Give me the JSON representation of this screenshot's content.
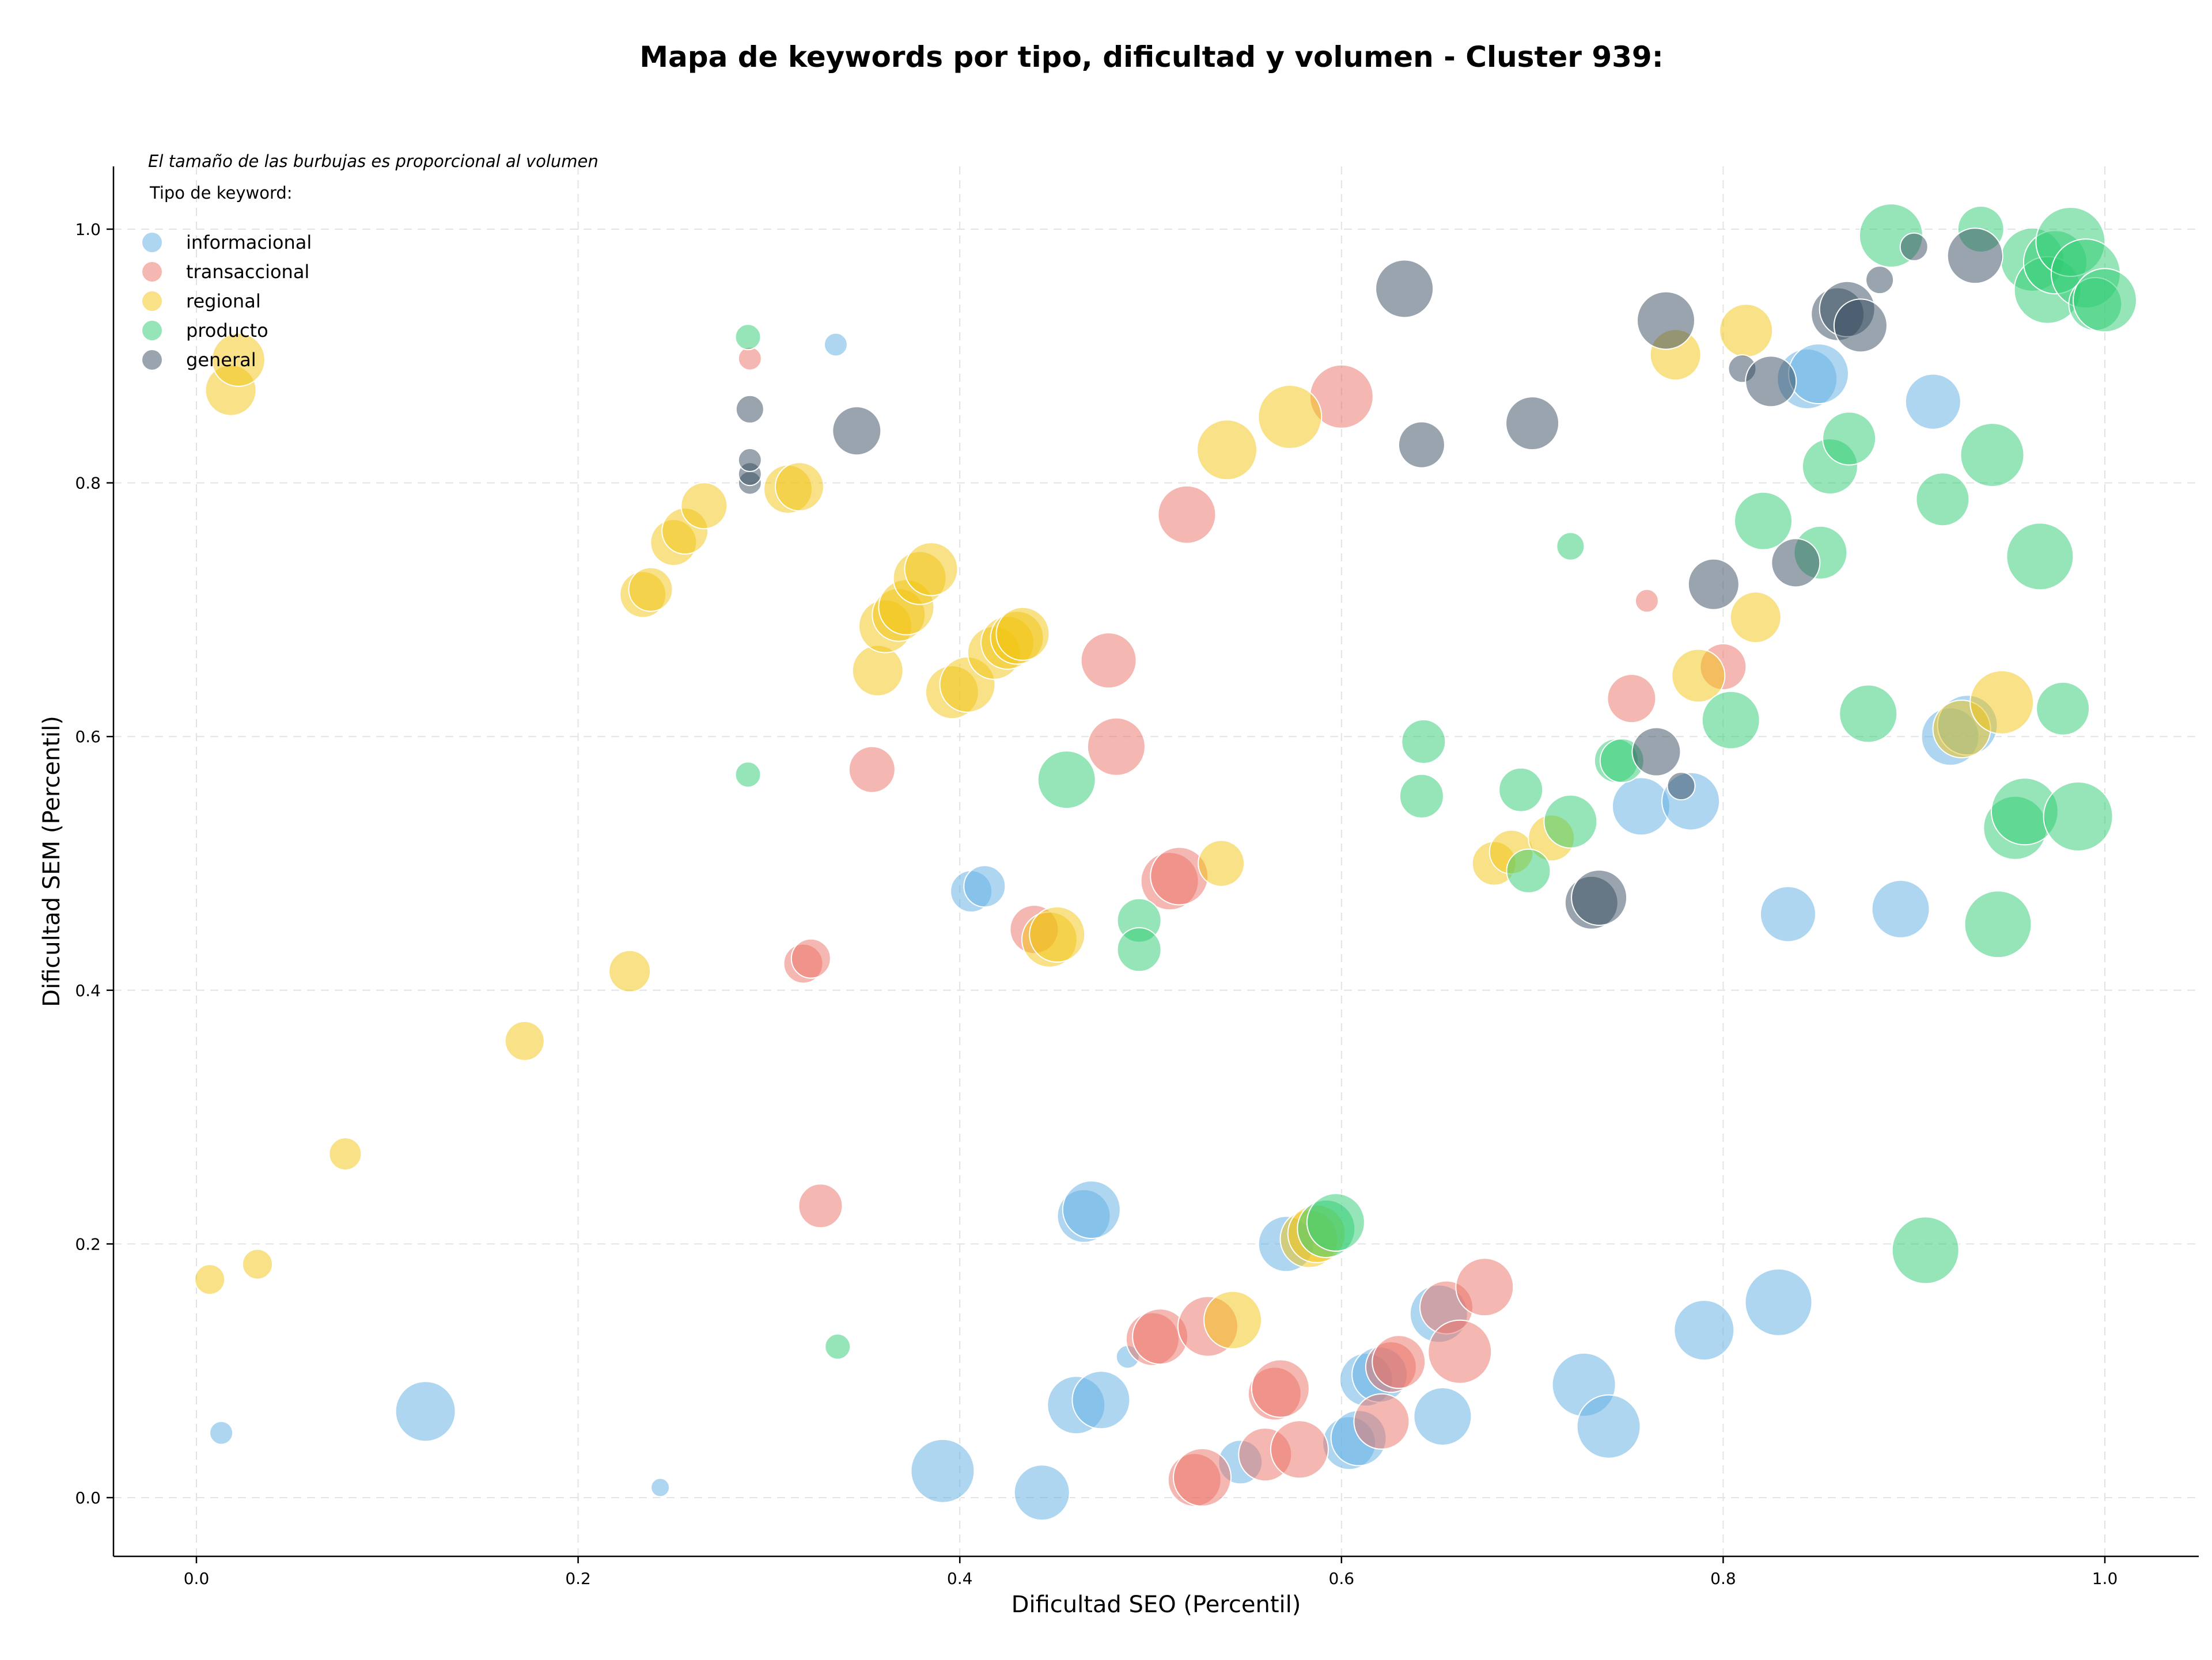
{
  "chart_data": {
    "type": "scatter",
    "title": "Mapa de keywords por tipo, dificultad y volumen - Cluster 939:",
    "xlabel": "Dificultad SEO (Percentil)",
    "ylabel": "Dificultad SEM (Percentil)",
    "xlim": [
      -0.045,
      1.05
    ],
    "ylim": [
      -0.045,
      1.05
    ],
    "x_ticks": [
      "0.0",
      "0.2",
      "0.4",
      "0.6",
      "0.8",
      "1.0"
    ],
    "y_ticks": [
      "0.0",
      "0.2",
      "0.4",
      "0.6",
      "0.8",
      "1.0"
    ],
    "grid": true,
    "legend_position": "top-left",
    "legend_title": "Tipo de keyword:",
    "note": "El tamaño de las burbujas es proporcional al volumen",
    "series": [
      {
        "name": "informacional",
        "color": "#5dade2",
        "points": [
          [
            0.013,
            0.051,
            20
          ],
          [
            0.12,
            0.068,
            52
          ],
          [
            0.243,
            0.008,
            16
          ],
          [
            0.335,
            0.909,
            20
          ],
          [
            0.391,
            0.021,
            55
          ],
          [
            0.406,
            0.478,
            36
          ],
          [
            0.413,
            0.482,
            36
          ],
          [
            0.443,
            0.004,
            48
          ],
          [
            0.461,
            0.073,
            50
          ],
          [
            0.465,
            0.222,
            46
          ],
          [
            0.469,
            0.227,
            50
          ],
          [
            0.474,
            0.077,
            50
          ],
          [
            0.488,
            0.111,
            20
          ],
          [
            0.547,
            0.028,
            38
          ],
          [
            0.571,
            0.2,
            48
          ],
          [
            0.604,
            0.043,
            46
          ],
          [
            0.609,
            0.047,
            48
          ],
          [
            0.613,
            0.093,
            46
          ],
          [
            0.62,
            0.097,
            48
          ],
          [
            0.651,
            0.145,
            50
          ],
          [
            0.653,
            0.064,
            50
          ],
          [
            0.727,
            0.089,
            55
          ],
          [
            0.74,
            0.056,
            55
          ],
          [
            0.757,
            0.545,
            50
          ],
          [
            0.783,
            0.549,
            50
          ],
          [
            0.79,
            0.132,
            52
          ],
          [
            0.829,
            0.154,
            58
          ],
          [
            0.834,
            0.46,
            48
          ],
          [
            0.844,
            0.882,
            52
          ],
          [
            0.85,
            0.886,
            52
          ],
          [
            0.893,
            0.464,
            50
          ],
          [
            0.91,
            0.864,
            48
          ],
          [
            0.919,
            0.6,
            50
          ],
          [
            0.928,
            0.609,
            52
          ]
        ]
      },
      {
        "name": "transaccional",
        "color": "#ec7063",
        "points": [
          [
            0.29,
            0.898,
            20
          ],
          [
            0.318,
            0.421,
            34
          ],
          [
            0.322,
            0.425,
            34
          ],
          [
            0.327,
            0.23,
            38
          ],
          [
            0.354,
            0.574,
            40
          ],
          [
            0.439,
            0.448,
            42
          ],
          [
            0.478,
            0.66,
            48
          ],
          [
            0.482,
            0.592,
            50
          ],
          [
            0.501,
            0.125,
            46
          ],
          [
            0.505,
            0.127,
            48
          ],
          [
            0.51,
            0.486,
            50
          ],
          [
            0.515,
            0.49,
            50
          ],
          [
            0.519,
            0.775,
            50
          ],
          [
            0.523,
            0.014,
            46
          ],
          [
            0.527,
            0.016,
            50
          ],
          [
            0.53,
            0.135,
            52
          ],
          [
            0.56,
            0.034,
            46
          ],
          [
            0.565,
            0.082,
            46
          ],
          [
            0.568,
            0.086,
            50
          ],
          [
            0.578,
            0.038,
            50
          ],
          [
            0.6,
            0.868,
            55
          ],
          [
            0.621,
            0.06,
            48
          ],
          [
            0.626,
            0.103,
            44
          ],
          [
            0.63,
            0.107,
            46
          ],
          [
            0.655,
            0.15,
            46
          ],
          [
            0.662,
            0.115,
            55
          ],
          [
            0.675,
            0.166,
            50
          ],
          [
            0.752,
            0.63,
            42
          ],
          [
            0.76,
            0.707,
            20
          ],
          [
            0.8,
            0.655,
            40
          ]
        ]
      },
      {
        "name": "regional",
        "color": "#f1c40f",
        "points": [
          [
            0.007,
            0.172,
            26
          ],
          [
            0.018,
            0.873,
            44
          ],
          [
            0.022,
            0.897,
            46
          ],
          [
            0.032,
            0.184,
            26
          ],
          [
            0.078,
            0.271,
            28
          ],
          [
            0.172,
            0.36,
            34
          ],
          [
            0.227,
            0.415,
            36
          ],
          [
            0.234,
            0.712,
            40
          ],
          [
            0.238,
            0.716,
            38
          ],
          [
            0.25,
            0.753,
            40
          ],
          [
            0.256,
            0.762,
            40
          ],
          [
            0.266,
            0.782,
            40
          ],
          [
            0.31,
            0.795,
            42
          ],
          [
            0.316,
            0.797,
            42
          ],
          [
            0.357,
            0.652,
            44
          ],
          [
            0.361,
            0.687,
            46
          ],
          [
            0.368,
            0.696,
            46
          ],
          [
            0.372,
            0.702,
            48
          ],
          [
            0.379,
            0.725,
            46
          ],
          [
            0.385,
            0.732,
            46
          ],
          [
            0.396,
            0.635,
            46
          ],
          [
            0.404,
            0.641,
            48
          ],
          [
            0.418,
            0.666,
            46
          ],
          [
            0.425,
            0.674,
            46
          ],
          [
            0.43,
            0.678,
            46
          ],
          [
            0.433,
            0.681,
            46
          ],
          [
            0.447,
            0.44,
            48
          ],
          [
            0.451,
            0.444,
            48
          ],
          [
            0.537,
            0.5,
            40
          ],
          [
            0.543,
            0.14,
            50
          ],
          [
            0.54,
            0.826,
            52
          ],
          [
            0.573,
            0.852,
            55
          ],
          [
            0.583,
            0.204,
            50
          ],
          [
            0.587,
            0.208,
            50
          ],
          [
            0.68,
            0.5,
            38
          ],
          [
            0.689,
            0.509,
            38
          ],
          [
            0.71,
            0.52,
            40
          ],
          [
            0.775,
            0.901,
            44
          ],
          [
            0.787,
            0.648,
            46
          ],
          [
            0.812,
            0.92,
            46
          ],
          [
            0.817,
            0.694,
            44
          ],
          [
            0.925,
            0.606,
            50
          ],
          [
            0.946,
            0.627,
            55
          ]
        ]
      },
      {
        "name": "producto",
        "color": "#2ecc71",
        "points": [
          [
            0.289,
            0.915,
            22
          ],
          [
            0.289,
            0.57,
            22
          ],
          [
            0.336,
            0.119,
            22
          ],
          [
            0.456,
            0.566,
            50
          ],
          [
            0.494,
            0.455,
            38
          ],
          [
            0.494,
            0.432,
            38
          ],
          [
            0.592,
            0.212,
            50
          ],
          [
            0.597,
            0.217,
            50
          ],
          [
            0.643,
            0.596,
            38
          ],
          [
            0.642,
            0.553,
            38
          ],
          [
            0.694,
            0.558,
            38
          ],
          [
            0.698,
            0.494,
            38
          ],
          [
            0.72,
            0.75,
            24
          ],
          [
            0.72,
            0.533,
            46
          ],
          [
            0.744,
            0.581,
            38
          ],
          [
            0.747,
            0.581,
            38
          ],
          [
            0.804,
            0.613,
            50
          ],
          [
            0.821,
            0.77,
            50
          ],
          [
            0.851,
            0.745,
            46
          ],
          [
            0.856,
            0.813,
            48
          ],
          [
            0.866,
            0.835,
            46
          ],
          [
            0.876,
            0.618,
            50
          ],
          [
            0.888,
            0.995,
            55
          ],
          [
            0.906,
            0.195,
            58
          ],
          [
            0.915,
            0.787,
            46
          ],
          [
            0.935,
            1.0,
            40
          ],
          [
            0.941,
            0.822,
            55
          ],
          [
            0.944,
            0.452,
            58
          ],
          [
            0.953,
            0.528,
            55
          ],
          [
            0.958,
            0.541,
            58
          ],
          [
            0.962,
            0.976,
            55
          ],
          [
            0.966,
            0.742,
            58
          ],
          [
            0.97,
            0.952,
            58
          ],
          [
            0.974,
            0.974,
            55
          ],
          [
            0.978,
            0.622,
            46
          ],
          [
            0.982,
            0.99,
            60
          ],
          [
            0.986,
            0.537,
            60
          ],
          [
            0.99,
            0.965,
            60
          ],
          [
            0.995,
            0.941,
            46
          ],
          [
            1.0,
            0.944,
            55
          ]
        ]
      },
      {
        "name": "general",
        "color": "#34495e",
        "points": [
          [
            0.29,
            0.8,
            20
          ],
          [
            0.29,
            0.807,
            20
          ],
          [
            0.29,
            0.818,
            20
          ],
          [
            0.29,
            0.858,
            24
          ],
          [
            0.346,
            0.841,
            42
          ],
          [
            0.633,
            0.953,
            50
          ],
          [
            0.642,
            0.83,
            40
          ],
          [
            0.7,
            0.847,
            46
          ],
          [
            0.731,
            0.469,
            46
          ],
          [
            0.735,
            0.473,
            48
          ],
          [
            0.765,
            0.588,
            42
          ],
          [
            0.77,
            0.928,
            50
          ],
          [
            0.778,
            0.561,
            24
          ],
          [
            0.795,
            0.72,
            44
          ],
          [
            0.81,
            0.89,
            24
          ],
          [
            0.825,
            0.88,
            44
          ],
          [
            0.838,
            0.737,
            42
          ],
          [
            0.86,
            0.933,
            46
          ],
          [
            0.865,
            0.937,
            48
          ],
          [
            0.872,
            0.924,
            46
          ],
          [
            0.882,
            0.96,
            24
          ],
          [
            0.9,
            0.986,
            24
          ],
          [
            0.932,
            0.979,
            48
          ]
        ]
      }
    ]
  }
}
